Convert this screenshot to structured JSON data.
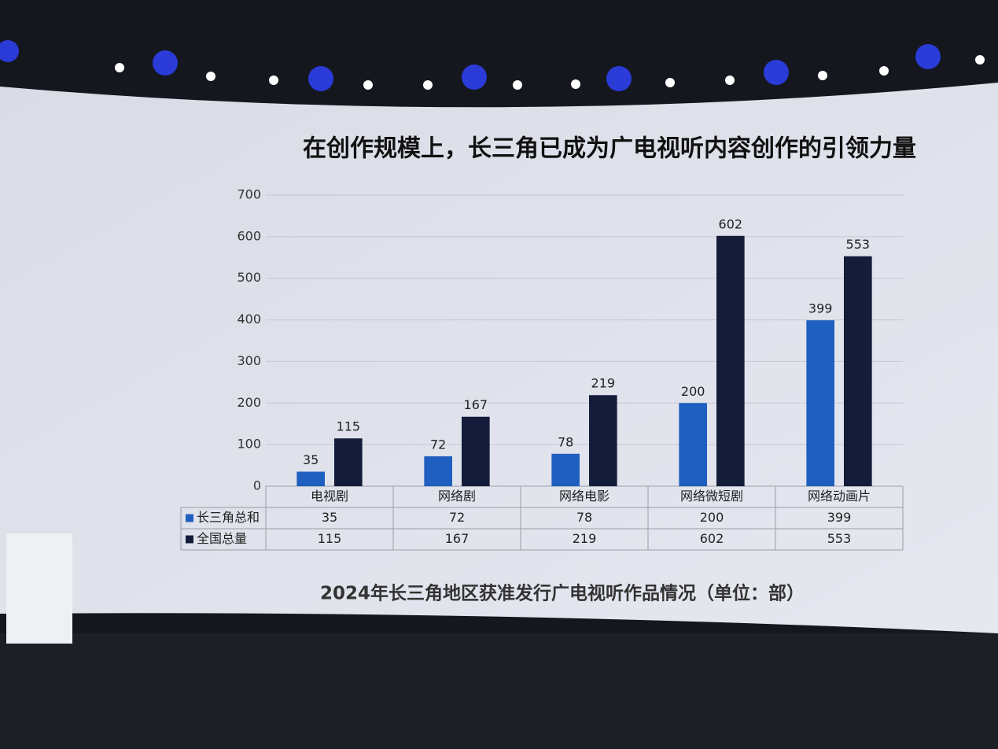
{
  "chart_data": {
    "type": "bar",
    "title": "在创作规模上，长三角已成为广电视听内容创作的引领力量",
    "subtitle": "2024年长三角地区获准发行广电视听作品情况（单位：部）",
    "categories": [
      "电视剧",
      "网络剧",
      "网络电影",
      "网络微短剧",
      "网络动画片"
    ],
    "series": [
      {
        "name": "长三角总和",
        "color": "#1f5fbf",
        "values": [
          35,
          72,
          78,
          200,
          399
        ]
      },
      {
        "name": "全国总量",
        "color": "#141c3a",
        "values": [
          115,
          167,
          219,
          602,
          553
        ]
      }
    ],
    "ylim": [
      0,
      700
    ],
    "yticks": [
      0,
      100,
      200,
      300,
      400,
      500,
      600,
      700
    ],
    "grid": true
  }
}
